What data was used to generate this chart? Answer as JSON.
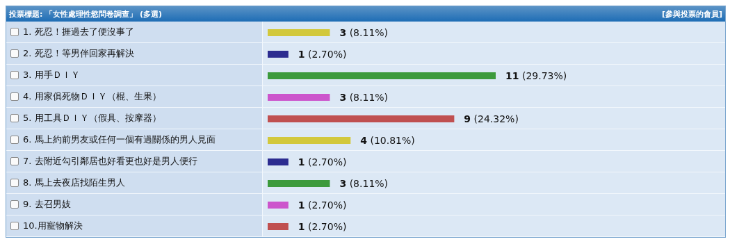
{
  "chart_data": {
    "type": "bar",
    "orientation": "horizontal",
    "title": "投票標題: 「女性處理性慾問卷調查」 (多選)",
    "annotations": [
      "[參與投票的會員]"
    ],
    "categories": [
      "1. 死忍！捱過去了便沒事了",
      "2. 死忍！等男伴回家再解決",
      "3. 用手ＤＩＹ",
      "4. 用家俱死物ＤＩＹ（棍、生果）",
      "5. 用工具ＤＩＹ（假具、按摩器）",
      "6. 馬上約前男友或任何一個有過關係的男人見面",
      "7. 去附近勾引鄰居也好看更也好是男人便行",
      "8. 馬上去夜店找陌生男人",
      "9. 去召男妓",
      "10.用寵物解決"
    ],
    "values": [
      3,
      1,
      11,
      3,
      9,
      4,
      1,
      3,
      1,
      1
    ],
    "colors": [
      "#d2c83c",
      "#2c2c90",
      "#3c9a3c",
      "#cc55cc",
      "#c05050",
      "#d2c83c",
      "#2c2c90",
      "#3c9a3c",
      "#cc55cc",
      "#c05050"
    ],
    "value_labels": [
      "3 (8.11%)",
      "1 (2.70%)",
      "11 (29.73%)",
      "3 (8.11%)",
      "9 (24.32%)",
      "4 (10.81%)",
      "1 (2.70%)",
      "3 (8.11%)",
      "1 (2.70%)",
      "1 (2.70%)"
    ]
  }
}
